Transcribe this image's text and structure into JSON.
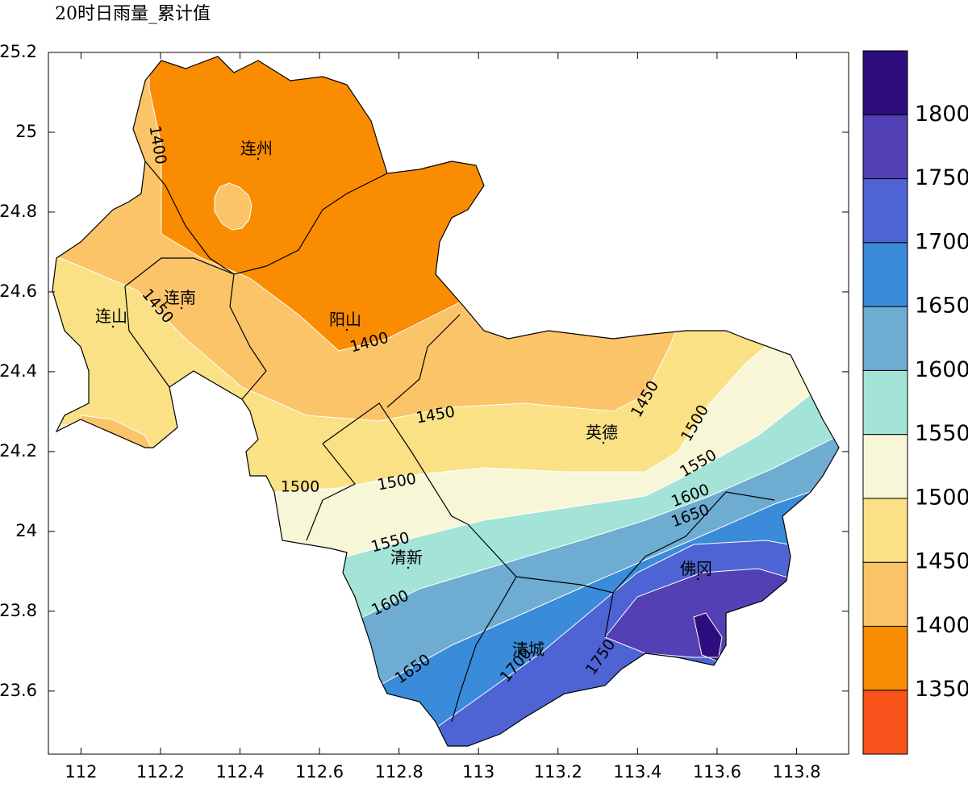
{
  "title": "20时日雨量_累计值",
  "map": {
    "xlim": [
      111.918,
      113.931
    ],
    "ylim": [
      23.442,
      25.2
    ],
    "xticks": [
      112,
      112.2,
      112.4,
      112.6,
      112.8,
      113,
      113.2,
      113.4,
      113.6,
      113.8
    ],
    "yticks": [
      23.6,
      23.8,
      24,
      24.2,
      24.4,
      24.6,
      24.8,
      25,
      25.2
    ],
    "places": [
      "连州",
      "连南",
      "连山",
      "阳山",
      "英德",
      "清新",
      "清城",
      "佛冈"
    ],
    "contour_labels": [
      1400,
      1450,
      1400,
      1450,
      1450,
      1500,
      1500,
      1500,
      1550,
      1550,
      1600,
      1600,
      1650,
      1650,
      1700,
      1750
    ]
  },
  "colorbar": {
    "levels": [
      1350,
      1400,
      1450,
      1500,
      1550,
      1600,
      1650,
      1700,
      1750,
      1800
    ],
    "colors": [
      "#f9511a",
      "#f98c00",
      "#fbc469",
      "#fae185",
      "#f7f7d8",
      "#a3e3d8",
      "#6eacd2",
      "#3a8bd9",
      "#4e63d4",
      "#5340b4",
      "#2e0e7e"
    ]
  }
}
